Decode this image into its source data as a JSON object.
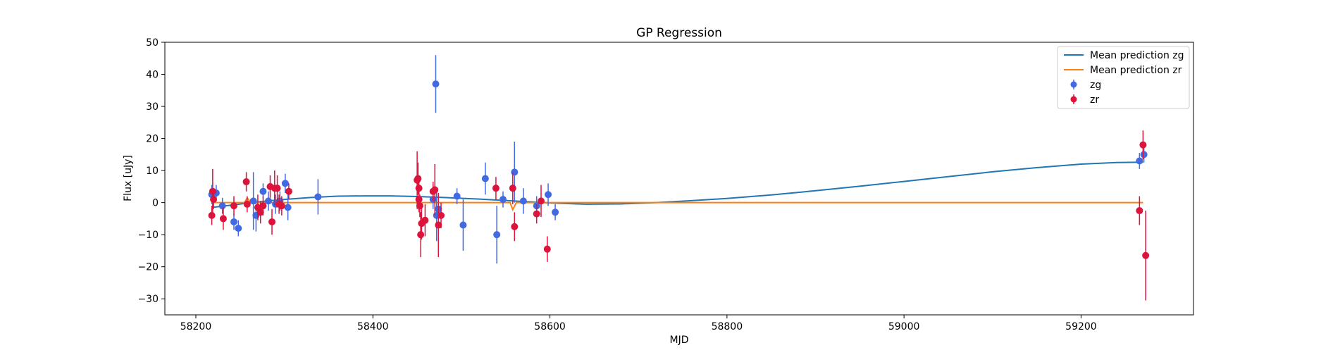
{
  "chart_data": {
    "type": "scatter",
    "title": "GP Regression",
    "xlabel": "MJD",
    "ylabel": "Flux [uJy]",
    "xlim": [
      58165,
      59327
    ],
    "ylim": [
      -35,
      50
    ],
    "xticks": [
      58200,
      58400,
      58600,
      58800,
      59000,
      59200
    ],
    "yticks": [
      -30,
      -20,
      -10,
      0,
      10,
      20,
      30,
      40,
      50
    ],
    "grid": false,
    "legend_position": "top-right",
    "series": [
      {
        "name": "Mean prediction zg",
        "kind": "line",
        "color": "#1f77b4",
        "x": [
          58218,
          58240,
          58260,
          58280,
          58300,
          58330,
          58360,
          58390,
          58420,
          58450,
          58480,
          58520,
          58560,
          58600,
          58640,
          58680,
          58720,
          58760,
          58800,
          58850,
          58900,
          58950,
          59000,
          59050,
          59100,
          59150,
          59200,
          59240,
          59270
        ],
        "y": [
          -1.5,
          -0.8,
          -0.1,
          0.5,
          1.0,
          1.6,
          2.0,
          2.1,
          2.1,
          1.9,
          1.6,
          1.1,
          0.5,
          -0.1,
          -0.5,
          -0.4,
          0.0,
          0.6,
          1.3,
          2.4,
          3.7,
          5.1,
          6.6,
          8.1,
          9.6,
          10.9,
          12.0,
          12.5,
          12.6
        ]
      },
      {
        "name": "Mean prediction zr",
        "kind": "line",
        "color": "#ff7f0e",
        "x": [
          58218,
          58255,
          58258,
          58262,
          58290,
          58293,
          58296,
          58450,
          58452,
          58455,
          58555,
          58558,
          58562,
          59270
        ],
        "y": [
          0,
          0,
          1.5,
          0,
          0,
          -1.2,
          0,
          0,
          -1.0,
          0,
          0,
          -2.2,
          0,
          0
        ]
      },
      {
        "name": "zg",
        "kind": "errorbar",
        "color": "#4169e1",
        "points": [
          {
            "x": 58218,
            "y": 2.5,
            "err": 3
          },
          {
            "x": 58223,
            "y": 3.0,
            "err": 2.5
          },
          {
            "x": 58230,
            "y": -1.0,
            "err": 2.5
          },
          {
            "x": 58243,
            "y": -6.0,
            "err": 2.5
          },
          {
            "x": 58248,
            "y": -8.0,
            "err": 2.5
          },
          {
            "x": 58265,
            "y": 0.5,
            "err": 9
          },
          {
            "x": 58268,
            "y": -4.0,
            "err": 5
          },
          {
            "x": 58276,
            "y": 3.5,
            "err": 2.5
          },
          {
            "x": 58282,
            "y": 0.5,
            "err": 3
          },
          {
            "x": 58290,
            "y": -0.5,
            "err": 3
          },
          {
            "x": 58295,
            "y": 0.5,
            "err": 3
          },
          {
            "x": 58301,
            "y": 6.0,
            "err": 3
          },
          {
            "x": 58304,
            "y": -1.5,
            "err": 4
          },
          {
            "x": 58338,
            "y": 1.8,
            "err": 5.5
          },
          {
            "x": 58471,
            "y": 37.0,
            "err": 9
          },
          {
            "x": 58468,
            "y": 1.0,
            "err": 3
          },
          {
            "x": 58472,
            "y": -4.0,
            "err": 8
          },
          {
            "x": 58474,
            "y": -2.0,
            "err": 3
          },
          {
            "x": 58495,
            "y": 2.0,
            "err": 2.5
          },
          {
            "x": 58502,
            "y": -7.0,
            "err": 8
          },
          {
            "x": 58527,
            "y": 7.5,
            "err": 5
          },
          {
            "x": 58540,
            "y": -10.0,
            "err": 9
          },
          {
            "x": 58547,
            "y": 1.0,
            "err": 2.5
          },
          {
            "x": 58560,
            "y": 9.5,
            "err": 9.5
          },
          {
            "x": 58570,
            "y": 0.5,
            "err": 4
          },
          {
            "x": 58585,
            "y": -1.0,
            "err": 3
          },
          {
            "x": 58598,
            "y": 2.5,
            "err": 3.5
          },
          {
            "x": 58606,
            "y": -3.0,
            "err": 2.5
          },
          {
            "x": 59266,
            "y": 13.0,
            "err": 2.5
          },
          {
            "x": 59271,
            "y": 15.0,
            "err": 2.5
          }
        ]
      },
      {
        "name": "zr",
        "kind": "errorbar",
        "color": "#dc143c",
        "points": [
          {
            "x": 58218,
            "y": -4.0,
            "err": 3
          },
          {
            "x": 58219,
            "y": 3.5,
            "err": 7
          },
          {
            "x": 58220,
            "y": 1.0,
            "err": 3
          },
          {
            "x": 58231,
            "y": -5.0,
            "err": 3.5
          },
          {
            "x": 58243,
            "y": -1.0,
            "err": 3
          },
          {
            "x": 58257,
            "y": 6.5,
            "err": 3
          },
          {
            "x": 58258,
            "y": -0.5,
            "err": 2.5
          },
          {
            "x": 58270,
            "y": -1.5,
            "err": 4
          },
          {
            "x": 58273,
            "y": -3.0,
            "err": 3.5
          },
          {
            "x": 58276,
            "y": -1.0,
            "err": 3
          },
          {
            "x": 58284,
            "y": 5.0,
            "err": 3.5
          },
          {
            "x": 58286,
            "y": -6.0,
            "err": 4
          },
          {
            "x": 58289,
            "y": 4.5,
            "err": 5.5
          },
          {
            "x": 58292,
            "y": 4.5,
            "err": 4
          },
          {
            "x": 58294,
            "y": -0.5,
            "err": 3
          },
          {
            "x": 58297,
            "y": -1.0,
            "err": 3
          },
          {
            "x": 58305,
            "y": 3.5,
            "err": 2.5
          },
          {
            "x": 58450,
            "y": 7.0,
            "err": 9
          },
          {
            "x": 58451,
            "y": 7.5,
            "err": 5
          },
          {
            "x": 58452,
            "y": 4.5,
            "err": 3
          },
          {
            "x": 58452,
            "y": 1.0,
            "err": 4
          },
          {
            "x": 58453,
            "y": -1.0,
            "err": 3.5
          },
          {
            "x": 58454,
            "y": -10.0,
            "err": 7
          },
          {
            "x": 58455,
            "y": -6.5,
            "err": 5
          },
          {
            "x": 58459,
            "y": -5.5,
            "err": 5
          },
          {
            "x": 58468,
            "y": 3.5,
            "err": 3
          },
          {
            "x": 58470,
            "y": 4.0,
            "err": 8
          },
          {
            "x": 58474,
            "y": -7.0,
            "err": 10
          },
          {
            "x": 58477,
            "y": -4.0,
            "err": 4
          },
          {
            "x": 58539,
            "y": 4.5,
            "err": 3.5
          },
          {
            "x": 58558,
            "y": 4.5,
            "err": 5
          },
          {
            "x": 58560,
            "y": -7.5,
            "err": 4.5
          },
          {
            "x": 58585,
            "y": -3.5,
            "err": 3
          },
          {
            "x": 58590,
            "y": 0.5,
            "err": 5
          },
          {
            "x": 58597,
            "y": -14.5,
            "err": 4
          },
          {
            "x": 59266,
            "y": -2.5,
            "err": 4.5
          },
          {
            "x": 59270,
            "y": 18.0,
            "err": 4.5
          },
          {
            "x": 59273,
            "y": -16.5,
            "err": 14
          }
        ]
      }
    ]
  }
}
